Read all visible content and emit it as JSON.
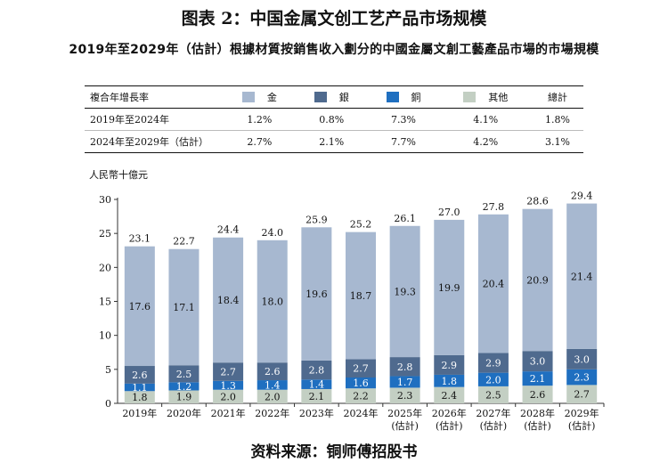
{
  "figure_title": "图表 2：中国金属文创工艺产品市场规模",
  "subtitle": "2019年至2029年（估計）根據材質按銷售收入劃分的中國金屬文創工藝產品市場的市場規模",
  "cagr_table": {
    "header": "複合年增長率",
    "columns": [
      "金",
      "銀",
      "銅",
      "其他",
      "總計"
    ],
    "rows": [
      {
        "label": "2019年至2024年",
        "values": [
          "1.2%",
          "0.8%",
          "7.3%",
          "4.1%",
          "1.8%"
        ]
      },
      {
        "label": "2024年至2029年（估計）",
        "values": [
          "2.7%",
          "2.1%",
          "7.7%",
          "4.2%",
          "3.1%"
        ]
      }
    ]
  },
  "source": "资料来源：铜师傅招股书",
  "colors": {
    "gold": "#a7b8d0",
    "silver": "#4f6a8e",
    "copper": "#1f6fc0",
    "other": "#c3cfc3"
  },
  "chart_data": {
    "type": "bar",
    "stacked": true,
    "ylabel": "人民幣十億元",
    "ylim": [
      0,
      30
    ],
    "yticks": [
      0,
      5,
      10,
      15,
      20,
      25,
      30
    ],
    "grid": false,
    "categories": [
      {
        "line1": "2019年",
        "line2": ""
      },
      {
        "line1": "2020年",
        "line2": ""
      },
      {
        "line1": "2021年",
        "line2": ""
      },
      {
        "line1": "2022年",
        "line2": ""
      },
      {
        "line1": "2023年",
        "line2": ""
      },
      {
        "line1": "2024年",
        "line2": ""
      },
      {
        "line1": "2025年",
        "line2": "(估計)"
      },
      {
        "line1": "2026年",
        "line2": "(估計)"
      },
      {
        "line1": "2027年",
        "line2": "(估計)"
      },
      {
        "line1": "2028年",
        "line2": "(估計)"
      },
      {
        "line1": "2029年",
        "line2": "(估計)"
      }
    ],
    "series": [
      {
        "name": "其他",
        "color_key": "other",
        "values": [
          1.8,
          1.9,
          2.0,
          2.0,
          2.1,
          2.2,
          2.3,
          2.4,
          2.5,
          2.6,
          2.7
        ]
      },
      {
        "name": "銅",
        "color_key": "copper",
        "values": [
          1.1,
          1.2,
          1.3,
          1.4,
          1.4,
          1.6,
          1.7,
          1.8,
          2.0,
          2.1,
          2.3
        ]
      },
      {
        "name": "銀",
        "color_key": "silver",
        "values": [
          2.6,
          2.5,
          2.7,
          2.6,
          2.8,
          2.7,
          2.8,
          2.9,
          2.9,
          3.0,
          3.0
        ]
      },
      {
        "name": "金",
        "color_key": "gold",
        "values": [
          17.6,
          17.1,
          18.4,
          18.0,
          19.6,
          18.7,
          19.3,
          19.9,
          20.4,
          20.9,
          21.4
        ]
      }
    ],
    "totals": [
      23.1,
      22.7,
      24.4,
      24.0,
      25.9,
      25.2,
      26.1,
      27.0,
      27.8,
      28.6,
      29.4
    ]
  }
}
